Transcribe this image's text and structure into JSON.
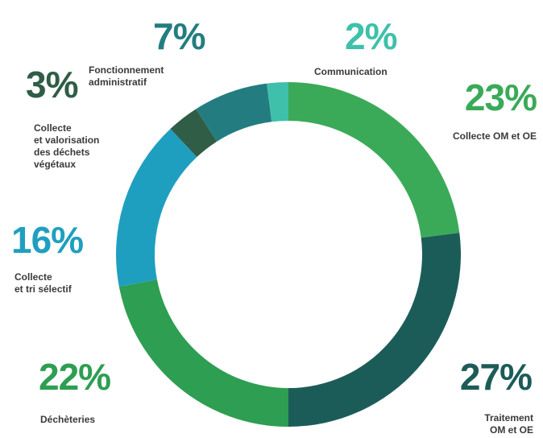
{
  "chart_data": {
    "type": "donut",
    "categories": [
      "Collecte OM et OE",
      "Traitement\nOM et OE",
      "Déchèteries",
      "Collecte\net tri sélectif",
      "Collecte\net valorisation\ndes déchets\nvégétaux",
      "Fonctionnement\nadministratif",
      "Communication"
    ],
    "values": [
      23,
      27,
      22,
      16,
      3,
      7,
      2
    ],
    "value_labels": [
      "23%",
      "27%",
      "22%",
      "16%",
      "3%",
      "7%",
      "2%"
    ],
    "colors": [
      "#3aaa58",
      "#1c5c58",
      "#2e9e52",
      "#1f9fc0",
      "#2f5d46",
      "#237d80",
      "#3fc0aa"
    ]
  }
}
